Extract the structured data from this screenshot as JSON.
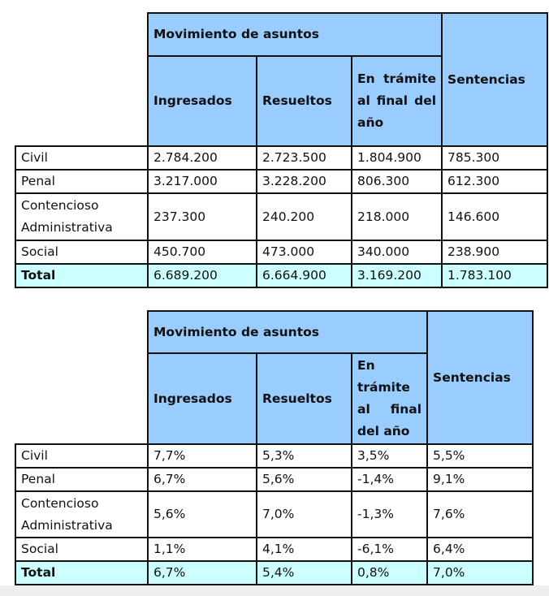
{
  "tables": [
    {
      "header": {
        "group": "Movimiento de asuntos",
        "columns": [
          "Ingresados",
          "Resueltos",
          "En trámite al final del año"
        ],
        "last": "Sentencias"
      },
      "rows": [
        {
          "label": "Civil",
          "values": [
            "2.784.200",
            "2.723.500",
            "1.804.900",
            "785.300"
          ]
        },
        {
          "label": "Penal",
          "values": [
            "3.217.000",
            "3.228.200",
            "806.300",
            "612.300"
          ]
        },
        {
          "label": "Contencioso Administrativa",
          "values": [
            "237.300",
            "240.200",
            "218.000",
            "146.600"
          ]
        },
        {
          "label": "Social",
          "values": [
            "450.700",
            "473.000",
            "340.000",
            "238.900"
          ]
        },
        {
          "label": "Total",
          "values": [
            "6.689.200",
            "6.664.900",
            "3.169.200",
            "1.783.100"
          ]
        }
      ]
    },
    {
      "header": {
        "group": "Movimiento de asuntos",
        "columns": [
          "Ingresados",
          "Resueltos",
          "En trámite al final del año"
        ],
        "last": "Sentencias"
      },
      "rows": [
        {
          "label": "Civil",
          "values": [
            "7,7%",
            "5,3%",
            "3,5%",
            "5,5%"
          ]
        },
        {
          "label": "Penal",
          "values": [
            "6,7%",
            "5,6%",
            "-1,4%",
            "9,1%"
          ]
        },
        {
          "label": "Contencioso Administrativa",
          "values": [
            "5,6%",
            "7,0%",
            "-1,3%",
            "7,6%"
          ]
        },
        {
          "label": "Social",
          "values": [
            "1,1%",
            "4,1%",
            "-6,1%",
            "6,4%"
          ]
        },
        {
          "label": "Total",
          "values": [
            "6,7%",
            "5,4%",
            "0,8%",
            "7,0%"
          ]
        }
      ]
    }
  ],
  "colors": {
    "header": "#99ccff",
    "total_row": "#ccffff"
  }
}
